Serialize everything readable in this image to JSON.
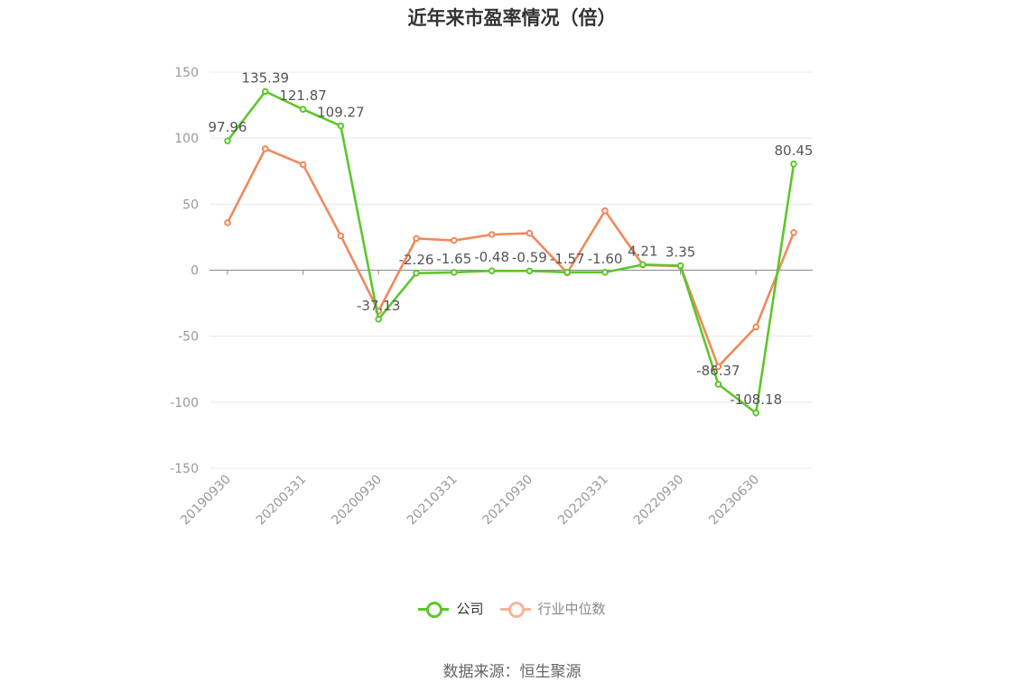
{
  "title": "近年来市盈率情况（倍）",
  "source_label": "数据来源：恒生聚源",
  "colors": {
    "company": "#5cc72a",
    "industry": "#f0895a",
    "industry_legend": "#f5b49a",
    "axis_label": "#999999",
    "grid": "#e8e8ee",
    "zero_axis": "#888888",
    "data_label": "#555555"
  },
  "chart_data": {
    "type": "line",
    "title": "近年来市盈率情况（倍）",
    "xlabel": "",
    "ylabel": "",
    "ylim": [
      -150,
      150
    ],
    "yticks": [
      150,
      100,
      50,
      0,
      -50,
      -100,
      -150
    ],
    "grid": true,
    "legend_position": "bottom",
    "x_tick_labels": [
      "20190930",
      "20200331",
      "20200930",
      "20210331",
      "20210930",
      "20220331",
      "20220930",
      "20230630"
    ],
    "series": [
      {
        "name": "公司",
        "values": [
          97.96,
          135.39,
          121.87,
          109.27,
          -37.13,
          -2.26,
          -1.65,
          -0.48,
          -0.59,
          -1.57,
          -1.6,
          4.21,
          3.35,
          -86.37,
          -108.18,
          80.45
        ],
        "labels": [
          "97.96",
          "135.39",
          "121.87",
          "109.27",
          "-37.13",
          "-2.26",
          "-1.65",
          "-0.48",
          "-0.59",
          "-1.57",
          "-1.60",
          "4.21",
          "3.35",
          "-86.37",
          "-108.18",
          "80.45"
        ]
      },
      {
        "name": "行业中位数",
        "values": [
          36,
          92,
          80,
          26,
          -31,
          24,
          22.5,
          27,
          28,
          -2,
          45,
          4,
          3,
          -73,
          -43,
          28.5
        ]
      }
    ]
  }
}
